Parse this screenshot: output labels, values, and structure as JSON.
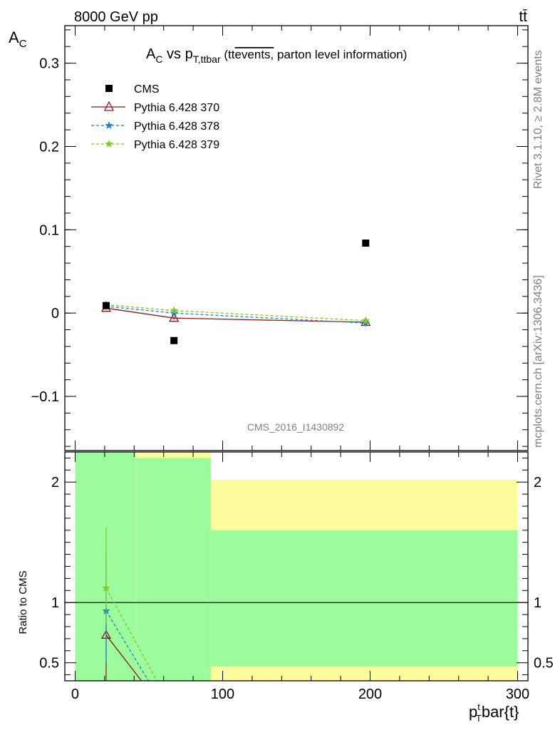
{
  "header": {
    "energy_label": "8000 GeV pp",
    "process_label": "tt̄"
  },
  "side_labels": {
    "rivet": "Rivet 3.1.10, ≥ 2.8M events",
    "mcplots": "mcplots.cern.ch [arXiv:1306.3436]"
  },
  "chart_data": [
    {
      "panel": "main",
      "type": "scatter",
      "title": "A_C vs p_T,ttbar (ttevents, parton level information)",
      "title_parts": {
        "main": "A",
        "sub1": "C",
        "mid": " vs p",
        "sub2": "T,ttbar",
        "paren_open": " (tt",
        "overline": "events,",
        "tail": " parton level information)"
      },
      "analysis_label": "CMS_2016_I1430892",
      "ylabel": "A",
      "ylabel_sub": "C",
      "xlim": [
        -7,
        307
      ],
      "ylim": [
        -0.165,
        0.345
      ],
      "yticks": [
        -0.1,
        0,
        0.1,
        0.2,
        0.3
      ],
      "ytick_labels": [
        "−0.1",
        "0",
        "0.1",
        "0.2",
        "0.3"
      ],
      "grid": false,
      "legend_position": "top-left",
      "series": [
        {
          "name": "CMS",
          "style": "data",
          "color": "#000000",
          "marker": "square",
          "x": [
            21,
            67,
            197
          ],
          "y": [
            0.009,
            -0.033,
            0.084
          ]
        },
        {
          "name": "Pythia 6.428 370",
          "style": "solid",
          "color": "#8b1a1a",
          "marker": "triangle",
          "x": [
            21,
            67,
            197
          ],
          "y": [
            0.006,
            -0.006,
            -0.011
          ],
          "err": [
            0.002,
            0.002,
            0.003
          ]
        },
        {
          "name": "Pythia 6.428 378",
          "style": "dashed",
          "color": "#1e7fd8",
          "marker": "star",
          "x": [
            21,
            67,
            197
          ],
          "y": [
            0.008,
            0.0,
            -0.012
          ],
          "err": [
            0.002,
            0.002,
            0.004
          ]
        },
        {
          "name": "Pythia 6.428 379",
          "style": "dashed",
          "color": "#7ec91f",
          "marker": "star",
          "x": [
            21,
            67,
            197
          ],
          "y": [
            0.01,
            0.003,
            -0.009
          ],
          "err": [
            0.002,
            0.002,
            0.004
          ]
        }
      ]
    },
    {
      "panel": "ratio",
      "type": "line",
      "ylabel": "Ratio to CMS",
      "xlabel": "p",
      "xlabel_sup": "t",
      "xlabel_sub": "T",
      "xlabel_tail": "bar{t}",
      "xlim": [
        -7,
        307
      ],
      "ylim": [
        0.35,
        2.25
      ],
      "xticks": [
        0,
        100,
        200,
        300
      ],
      "yticks": [
        0.5,
        1,
        2
      ],
      "ytick_labels": [
        "0.5",
        "1",
        "2"
      ],
      "bands": [
        {
          "x": [
            0,
            41
          ],
          "inner": [
            0.35,
            2.25
          ],
          "outer": [
            0.35,
            2.25
          ]
        },
        {
          "x": [
            41,
            92
          ],
          "inner": [
            0.35,
            2.2
          ],
          "outer": [
            0.35,
            2.25
          ]
        },
        {
          "x": [
            92,
            300
          ],
          "inner": [
            0.47,
            1.6
          ],
          "outer": [
            0.35,
            2.02
          ]
        }
      ],
      "band_colors": {
        "inner": "#9cfc9c",
        "outer": "#fcfc9c"
      },
      "series": [
        {
          "name": "Pythia 6.428 370",
          "color": "#8b1a1a",
          "style": "solid",
          "marker": "triangle",
          "x": [
            21,
            67
          ],
          "y": [
            0.73,
            0.0
          ],
          "err_low": [
            0.0,
            0.0
          ],
          "err_high": [
            0.2,
            0.0
          ]
        },
        {
          "name": "Pythia 6.428 378",
          "color": "#1e7fd8",
          "style": "dashed",
          "marker": "star",
          "x": [
            21,
            67
          ],
          "y": [
            0.93,
            0.0
          ],
          "err_low": [
            0.43,
            0.0
          ],
          "err_high": [
            0.47,
            0.0
          ]
        },
        {
          "name": "Pythia 6.428 379",
          "color": "#7ec91f",
          "style": "dashed",
          "marker": "star",
          "x": [
            21,
            67
          ],
          "y": [
            1.12,
            0.09
          ],
          "err_low": [
            0.3,
            0.0
          ],
          "err_high": [
            0.5,
            0.0
          ]
        }
      ]
    }
  ]
}
